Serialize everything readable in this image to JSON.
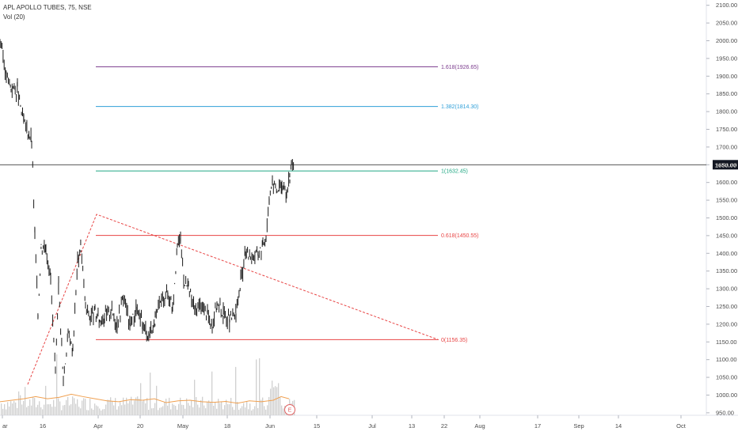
{
  "chart": {
    "title": "APL APOLLO TUBES, 75, NSE",
    "volume_label": "Vol (20)",
    "last_price": 1650.0,
    "last_price_label": "1650.00",
    "earnings_marker": "E",
    "colors": {
      "background": "#ffffff",
      "candle": "#1a1a1a",
      "volume": "#d0d0d0",
      "volume_ma": "#f0a050",
      "price_line": "#1a1a1a",
      "price_badge": "#131722",
      "trend_line": "#e84545"
    }
  },
  "chart_data": {
    "type": "line",
    "x_tick_labels": [
      "ar",
      "16",
      "Apr",
      "20",
      "May",
      "18",
      "Jun",
      "15",
      "Jul",
      "13",
      "22",
      "Aug",
      "17",
      "Sep",
      "14",
      "Oct"
    ],
    "y_tick_labels": [
      "950.00",
      "1000.00",
      "1050.00",
      "1100.00",
      "1150.00",
      "1200.00",
      "1250.00",
      "1300.00",
      "1350.00",
      "1400.00",
      "1450.00",
      "1500.00",
      "1550.00",
      "1600.00",
      "1650.00",
      "1700.00",
      "1750.00",
      "1800.00",
      "1850.00",
      "1900.00",
      "1950.00",
      "2000.00",
      "2050.00",
      "2100.00"
    ],
    "y_axis": [
      943,
      2106
    ],
    "price_series": [
      [
        0,
        2005
      ],
      [
        8,
        1900
      ],
      [
        14,
        1870
      ],
      [
        22,
        1860
      ],
      [
        30,
        1770
      ],
      [
        40,
        1720
      ],
      [
        44,
        1450
      ],
      [
        48,
        1230
      ],
      [
        52,
        1420
      ],
      [
        58,
        1420
      ],
      [
        64,
        1330
      ],
      [
        70,
        1050
      ],
      [
        74,
        1320
      ],
      [
        80,
        1040
      ],
      [
        86,
        1170
      ],
      [
        92,
        1130
      ],
      [
        98,
        1380
      ],
      [
        102,
        1420
      ],
      [
        108,
        1250
      ],
      [
        114,
        1220
      ],
      [
        120,
        1230
      ],
      [
        126,
        1210
      ],
      [
        132,
        1220
      ],
      [
        140,
        1240
      ],
      [
        148,
        1200
      ],
      [
        156,
        1280
      ],
      [
        164,
        1200
      ],
      [
        172,
        1240
      ],
      [
        180,
        1200
      ],
      [
        188,
        1170
      ],
      [
        196,
        1210
      ],
      [
        204,
        1270
      ],
      [
        212,
        1290
      ],
      [
        218,
        1250
      ],
      [
        224,
        1420
      ],
      [
        228,
        1440
      ],
      [
        232,
        1330
      ],
      [
        238,
        1300
      ],
      [
        246,
        1240
      ],
      [
        254,
        1250
      ],
      [
        262,
        1230
      ],
      [
        268,
        1200
      ],
      [
        274,
        1260
      ],
      [
        282,
        1230
      ],
      [
        290,
        1210
      ],
      [
        298,
        1230
      ],
      [
        304,
        1320
      ],
      [
        310,
        1400
      ],
      [
        318,
        1390
      ],
      [
        326,
        1400
      ],
      [
        332,
        1420
      ],
      [
        336,
        1450
      ],
      [
        340,
        1560
      ],
      [
        344,
        1600
      ],
      [
        350,
        1580
      ],
      [
        356,
        1590
      ],
      [
        362,
        1570
      ],
      [
        366,
        1610
      ],
      [
        368,
        1660
      ],
      [
        371,
        1650
      ]
    ],
    "fibonacci_levels": [
      {
        "label": "0(1156.35)",
        "value": 1156.35,
        "color": "#e84545"
      },
      {
        "label": "0.618(1450.55)",
        "value": 1450.55,
        "color": "#e84545"
      },
      {
        "label": "1(1632.45)",
        "value": 1632.45,
        "color": "#22a884"
      },
      {
        "label": "1.382(1814.30)",
        "value": 1814.3,
        "color": "#2e9fd8"
      },
      {
        "label": "1.618(1926.65)",
        "value": 1926.65,
        "color": "#7a3a8c"
      }
    ],
    "trend_line": [
      [
        35,
        1030
      ],
      [
        122,
        1510
      ],
      [
        554,
        1156
      ]
    ],
    "volume_ma": [
      [
        0,
        0.45
      ],
      [
        15,
        0.5
      ],
      [
        30,
        0.55
      ],
      [
        45,
        0.62
      ],
      [
        60,
        0.55
      ],
      [
        75,
        0.6
      ],
      [
        90,
        0.7
      ],
      [
        105,
        0.62
      ],
      [
        120,
        0.55
      ],
      [
        135,
        0.48
      ],
      [
        150,
        0.45
      ],
      [
        165,
        0.52
      ],
      [
        180,
        0.5
      ],
      [
        195,
        0.55
      ],
      [
        210,
        0.42
      ],
      [
        225,
        0.48
      ],
      [
        240,
        0.5
      ],
      [
        255,
        0.45
      ],
      [
        270,
        0.43
      ],
      [
        285,
        0.46
      ],
      [
        300,
        0.4
      ],
      [
        315,
        0.48
      ],
      [
        330,
        0.45
      ],
      [
        345,
        0.5
      ],
      [
        355,
        0.62
      ],
      [
        365,
        0.55
      ]
    ]
  }
}
